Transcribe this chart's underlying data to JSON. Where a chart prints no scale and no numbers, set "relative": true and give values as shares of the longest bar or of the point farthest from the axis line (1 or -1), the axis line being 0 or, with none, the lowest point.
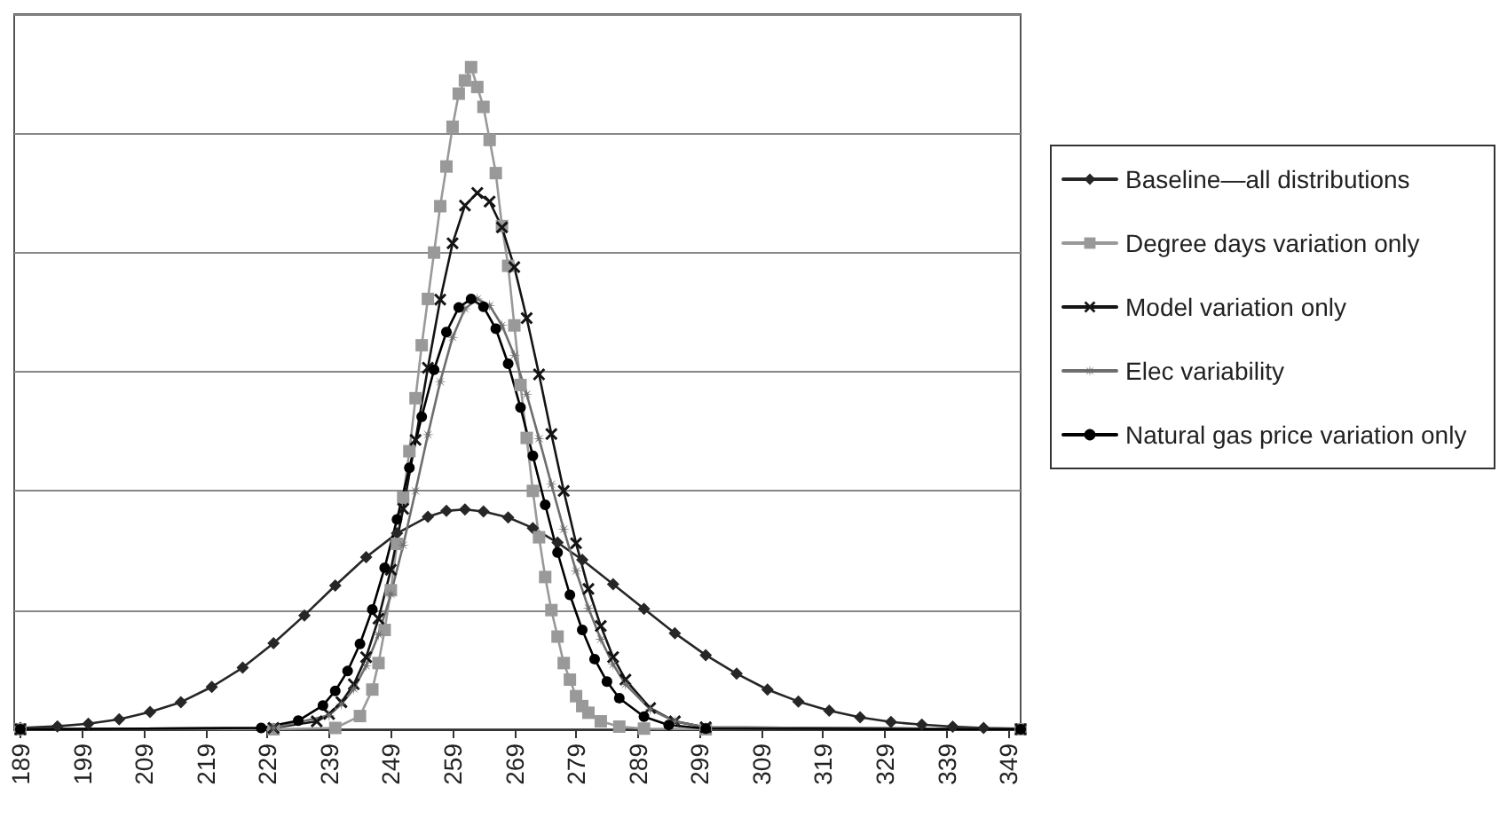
{
  "chart_data": {
    "type": "line",
    "relative": true,
    "grid": "y",
    "legend": "right",
    "line_style": "solid",
    "xlim": [
      188,
      351
    ],
    "xticks": [
      189,
      199,
      209,
      219,
      229,
      239,
      249,
      259,
      269,
      279,
      289,
      299,
      309,
      319,
      329,
      339,
      349
    ],
    "series": [
      {
        "name": "Baseline—all distributions",
        "color": "#262626",
        "marker": "diamond",
        "x": [
          189,
          195,
          200,
          205,
          210,
          215,
          220,
          225,
          230,
          235,
          240,
          245,
          250,
          255,
          258,
          261,
          264,
          268,
          272,
          276,
          280,
          285,
          290,
          295,
          300,
          305,
          310,
          315,
          320,
          325,
          330,
          335,
          340,
          345,
          351
        ],
        "values": [
          0.002,
          0.0045,
          0.0084,
          0.015,
          0.026,
          0.041,
          0.064,
          0.093,
          0.13,
          0.172,
          0.217,
          0.26,
          0.296,
          0.321,
          0.33,
          0.332,
          0.329,
          0.32,
          0.304,
          0.282,
          0.256,
          0.219,
          0.182,
          0.145,
          0.112,
          0.084,
          0.06,
          0.042,
          0.028,
          0.018,
          0.011,
          0.007,
          0.004,
          0.002,
          0.001
        ]
      },
      {
        "name": "Degree days variation only",
        "color": "#999999",
        "marker": "square",
        "x": [
          189,
          230,
          240,
          244,
          246,
          247,
          248,
          249,
          250,
          251,
          252,
          253,
          254,
          255,
          256,
          257,
          258,
          259,
          260,
          261,
          262,
          263,
          264,
          265,
          266,
          267,
          268,
          269,
          270,
          271,
          272,
          273,
          274,
          275,
          276,
          277,
          278,
          279,
          280,
          281,
          283,
          286,
          290,
          300,
          351
        ],
        "values": [
          0,
          0,
          0.002,
          0.02,
          0.06,
          0.1,
          0.15,
          0.21,
          0.28,
          0.35,
          0.42,
          0.5,
          0.58,
          0.65,
          0.72,
          0.79,
          0.85,
          0.91,
          0.96,
          0.98,
          1.0,
          0.97,
          0.94,
          0.89,
          0.84,
          0.76,
          0.7,
          0.61,
          0.52,
          0.44,
          0.36,
          0.29,
          0.23,
          0.18,
          0.14,
          0.1,
          0.075,
          0.05,
          0.035,
          0.025,
          0.012,
          0.004,
          0.001,
          0,
          0
        ]
      },
      {
        "name": "Model variation only",
        "color": "#141414",
        "marker": "cross",
        "x": [
          189,
          230,
          237,
          239,
          241,
          243,
          245,
          247,
          249,
          251,
          253,
          255,
          257,
          259,
          261,
          263,
          265,
          267,
          269,
          271,
          273,
          275,
          277,
          279,
          281,
          283,
          285,
          287,
          291,
          295,
          300,
          351
        ],
        "values": [
          0,
          0.002,
          0.012,
          0.023,
          0.041,
          0.068,
          0.109,
          0.167,
          0.241,
          0.333,
          0.437,
          0.546,
          0.649,
          0.734,
          0.791,
          0.81,
          0.797,
          0.758,
          0.698,
          0.621,
          0.536,
          0.446,
          0.36,
          0.281,
          0.212,
          0.156,
          0.109,
          0.075,
          0.032,
          0.012,
          0.003,
          0
        ]
      },
      {
        "name": "Elec variability",
        "color": "#6e6e6e",
        "marker": "star",
        "x": [
          189,
          230,
          239,
          241,
          243,
          245,
          247,
          249,
          251,
          253,
          255,
          257,
          259,
          261,
          263,
          265,
          267,
          269,
          271,
          273,
          275,
          277,
          279,
          281,
          283,
          285,
          287,
          291,
          295,
          300,
          351
        ],
        "values": [
          0,
          0.002,
          0.021,
          0.038,
          0.061,
          0.096,
          0.143,
          0.204,
          0.278,
          0.36,
          0.445,
          0.525,
          0.592,
          0.635,
          0.65,
          0.64,
          0.61,
          0.565,
          0.506,
          0.439,
          0.37,
          0.302,
          0.239,
          0.183,
          0.136,
          0.098,
          0.068,
          0.03,
          0.012,
          0.003,
          0
        ]
      },
      {
        "name": "Natural gas price variation only",
        "color": "#000000",
        "marker": "circle",
        "x": [
          189,
          228,
          234,
          238,
          240,
          242,
          244,
          246,
          248,
          250,
          252,
          254,
          256,
          258,
          260,
          262,
          264,
          266,
          268,
          270,
          272,
          274,
          276,
          278,
          280,
          282,
          284,
          286,
          290,
          294,
          300,
          351
        ],
        "values": [
          0,
          0.002,
          0.013,
          0.036,
          0.058,
          0.088,
          0.129,
          0.181,
          0.244,
          0.317,
          0.395,
          0.472,
          0.543,
          0.6,
          0.637,
          0.65,
          0.638,
          0.605,
          0.552,
          0.486,
          0.413,
          0.339,
          0.267,
          0.203,
          0.15,
          0.106,
          0.072,
          0.047,
          0.019,
          0.0065,
          0.001,
          0
        ]
      }
    ]
  }
}
